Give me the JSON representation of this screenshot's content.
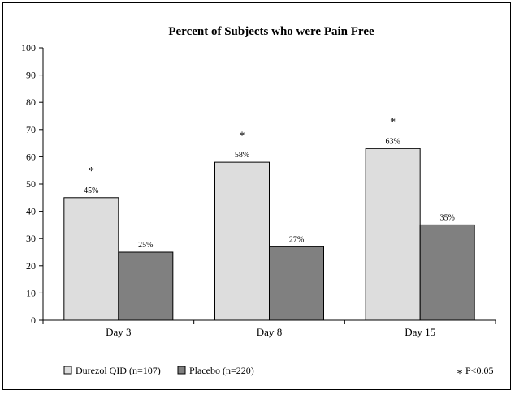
{
  "chart_data": {
    "type": "bar",
    "title": "Percent of Subjects who were Pain Free",
    "categories": [
      "Day 3",
      "Day 8",
      "Day 15"
    ],
    "series": [
      {
        "name": "Durezol QID (n=107)",
        "values": [
          45,
          58,
          63
        ],
        "labels": [
          "45%",
          "58%",
          "63%"
        ],
        "color": "#dddddd"
      },
      {
        "name": "Placebo (n=220)",
        "values": [
          25,
          27,
          35
        ],
        "labels": [
          "25%",
          "27%",
          "35%"
        ],
        "color": "#808080"
      }
    ],
    "ylim": [
      0,
      100
    ],
    "yticks": [
      0,
      10,
      20,
      30,
      40,
      50,
      60,
      70,
      80,
      90,
      100
    ],
    "significance": {
      "marker": "*",
      "categories": [
        "Day 3",
        "Day 8",
        "Day 15"
      ],
      "values": [
        55,
        68,
        73
      ],
      "legend_label": "P<0.05"
    },
    "grid": false,
    "legend_position": "bottom"
  }
}
